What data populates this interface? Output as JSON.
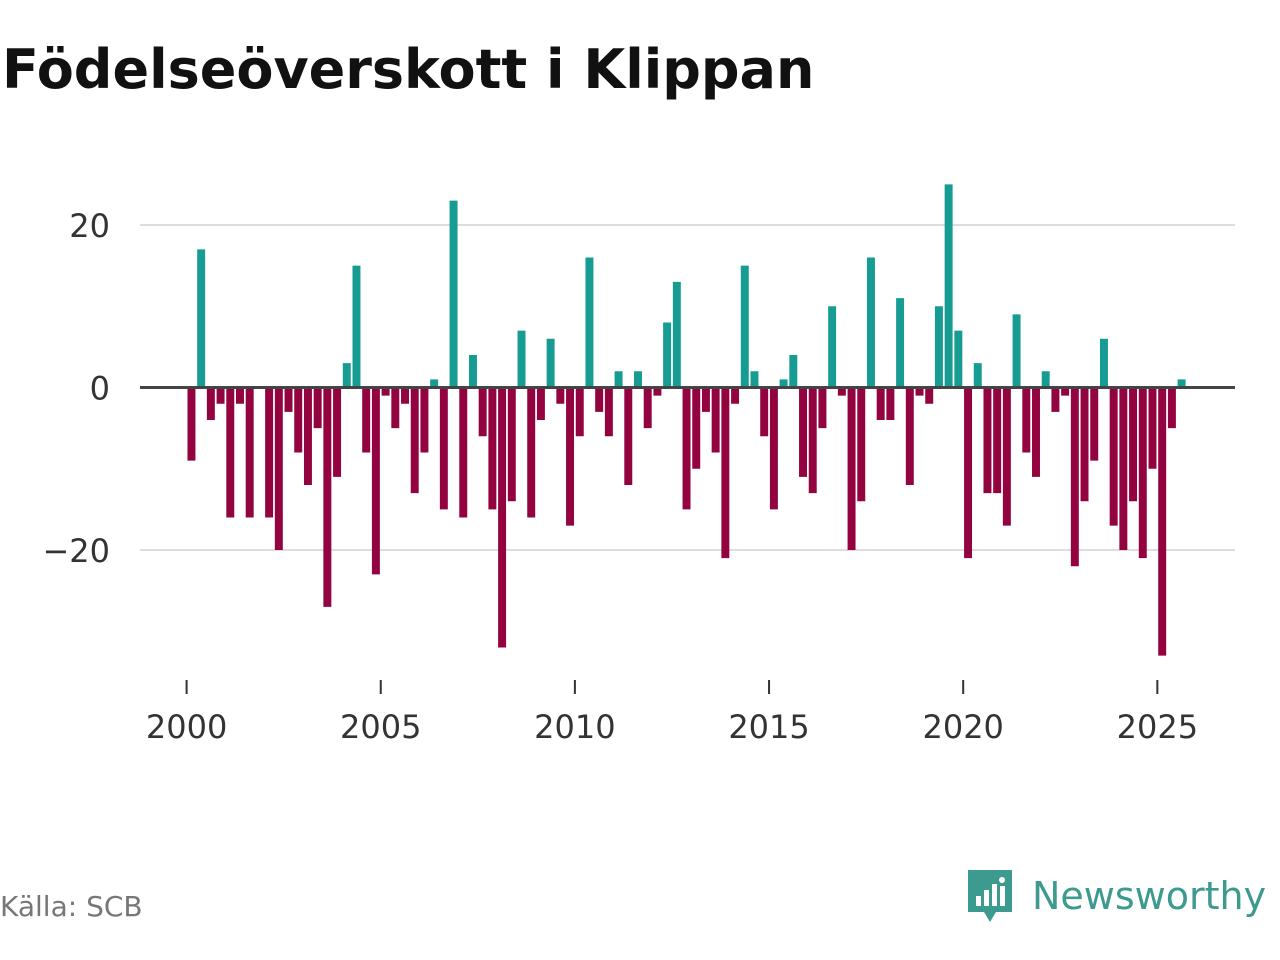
{
  "chart_data": {
    "type": "bar",
    "title": "Födelseöverskott i Klippan",
    "xlabel": "",
    "ylabel": "",
    "ylim": [
      -36,
      28
    ],
    "xlim": [
      1998.8,
      2027.0
    ],
    "x_ticks": [
      2000,
      2005,
      2010,
      2015,
      2020,
      2025
    ],
    "x_tick_labels": [
      "2000",
      "2005",
      "2010",
      "2015",
      "2020",
      "2025"
    ],
    "y_ticks": [
      20,
      0,
      -20
    ],
    "y_tick_labels": [
      "20",
      "0",
      "−20"
    ],
    "grid": true,
    "colors": {
      "positive": "#169c92",
      "negative": "#92033f",
      "gridline": "#dddddd",
      "zeroline": "#444444"
    },
    "series": [
      {
        "name": "Födelseöverskott",
        "start_year": 2000,
        "period": "quarter",
        "values": [
          -9,
          17,
          -4,
          -2,
          -16,
          -2,
          -16,
          0,
          -16,
          -20,
          -3,
          -8,
          -12,
          -5,
          -27,
          -11,
          3,
          15,
          -8,
          -23,
          -1,
          -5,
          -2,
          -13,
          -8,
          1,
          -15,
          23,
          -16,
          4,
          -6,
          -15,
          -32,
          -14,
          7,
          -16,
          -4,
          6,
          -2,
          -17,
          -6,
          16,
          -3,
          -6,
          2,
          -12,
          2,
          -5,
          -1,
          8,
          13,
          -15,
          -10,
          -3,
          -8,
          -21,
          -2,
          15,
          2,
          -6,
          -15,
          1,
          4,
          -11,
          -13,
          -5,
          10,
          -1,
          -20,
          -14,
          16,
          -4,
          -4,
          11,
          -12,
          -1,
          -2,
          10,
          25,
          7,
          -21,
          3,
          -13,
          -13,
          -17,
          9,
          -8,
          -11,
          2,
          -3,
          -1,
          -22,
          -14,
          -9,
          6,
          -17,
          -20,
          -14,
          -21,
          -10,
          -33,
          -5,
          1
        ]
      }
    ]
  },
  "footer": {
    "source": "Källa: SCB",
    "brand": "Newsworthy",
    "logo_icon": "newsworthy-logo-icon"
  }
}
